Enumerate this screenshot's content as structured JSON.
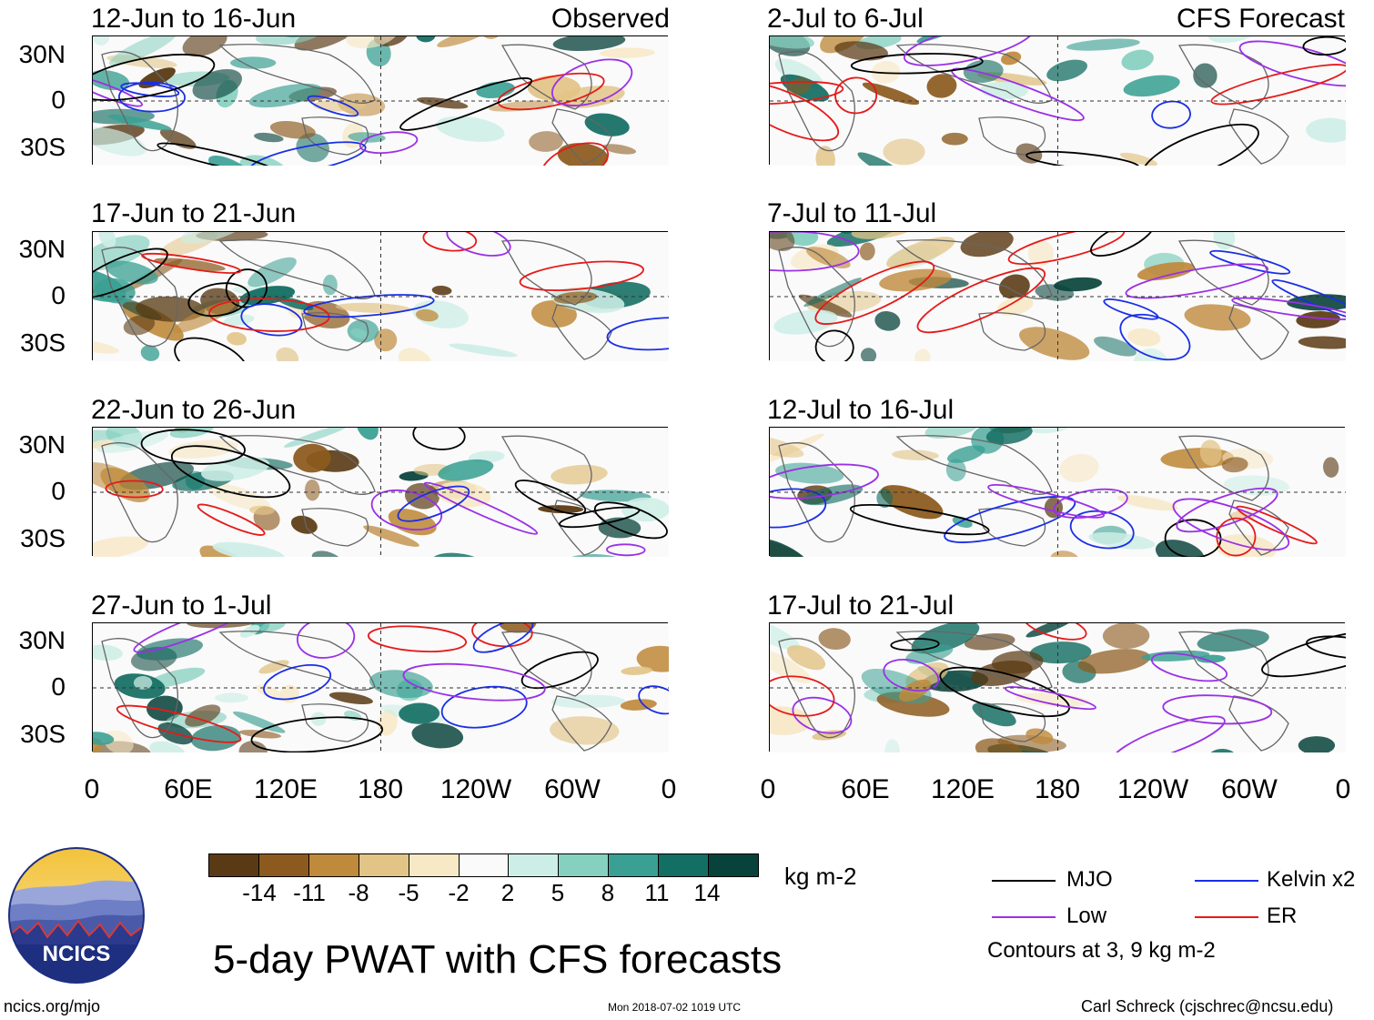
{
  "observed_label": "Observed",
  "forecast_label": "CFS Forecast",
  "panels": [
    {
      "title": "12-Jun to 16-Jun"
    },
    {
      "title": "17-Jun to 21-Jun"
    },
    {
      "title": "22-Jun to 26-Jun"
    },
    {
      "title": "27-Jun to 1-Jul"
    },
    {
      "title": "2-Jul to 6-Jul"
    },
    {
      "title": "7-Jul to 11-Jul"
    },
    {
      "title": "12-Jul to 16-Jul"
    },
    {
      "title": "17-Jul to 21-Jul"
    }
  ],
  "lat_labels": [
    "30N",
    "0",
    "30S"
  ],
  "lon_labels": [
    "0",
    "60E",
    "120E",
    "180",
    "120W",
    "60W",
    "0"
  ],
  "colorbar": {
    "ticks": [
      "-14",
      "-11",
      "-8",
      "-5",
      "-2",
      "2",
      "5",
      "8",
      "11",
      "14"
    ],
    "units": "kg m-2",
    "colors": [
      "#5a3a14",
      "#8c5a1e",
      "#bf8a3c",
      "#e2c487",
      "#f7e8c6",
      "#fafafa",
      "#cdeee6",
      "#86d0c0",
      "#3aa093",
      "#136e63",
      "#08433b"
    ]
  },
  "legend": {
    "items": [
      {
        "label": "MJO",
        "color": "#000000"
      },
      {
        "label": "Kelvin x2",
        "color": "#1a2ee6"
      },
      {
        "label": "Low",
        "color": "#9b30e6"
      },
      {
        "label": "ER",
        "color": "#e61a1a"
      }
    ],
    "note": "Contours at 3, 9 kg m-2"
  },
  "logo_text": "NCICS",
  "title": "5-day PWAT with CFS forecasts",
  "footer": {
    "url": "ncics.org/mjo",
    "timestamp": "Mon 2018-07-02 1019 UTC",
    "credit": "Carl Schreck (cjschrec@ncsu.edu)"
  }
}
